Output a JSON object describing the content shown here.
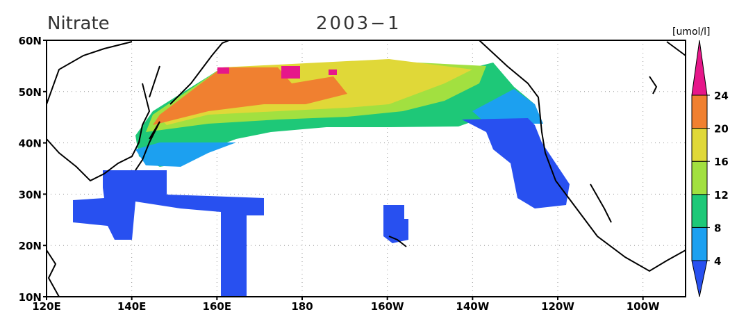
{
  "title": "Nitrate",
  "subtitle": "2003−1",
  "units": "[umol/l]",
  "lon_labels": [
    "120E",
    "140E",
    "160E",
    "180",
    "160W",
    "140W",
    "120W",
    "100W"
  ],
  "lat_labels": [
    "60N",
    "50N",
    "40N",
    "30N",
    "20N",
    "10N"
  ],
  "colorbar": {
    "levels": [
      4,
      8,
      12,
      16,
      20,
      24
    ],
    "colors": [
      "#2850f0",
      "#1ca0f0",
      "#1ec878",
      "#a2e040",
      "#e0d838",
      "#f08030",
      "#e6178a"
    ]
  }
}
